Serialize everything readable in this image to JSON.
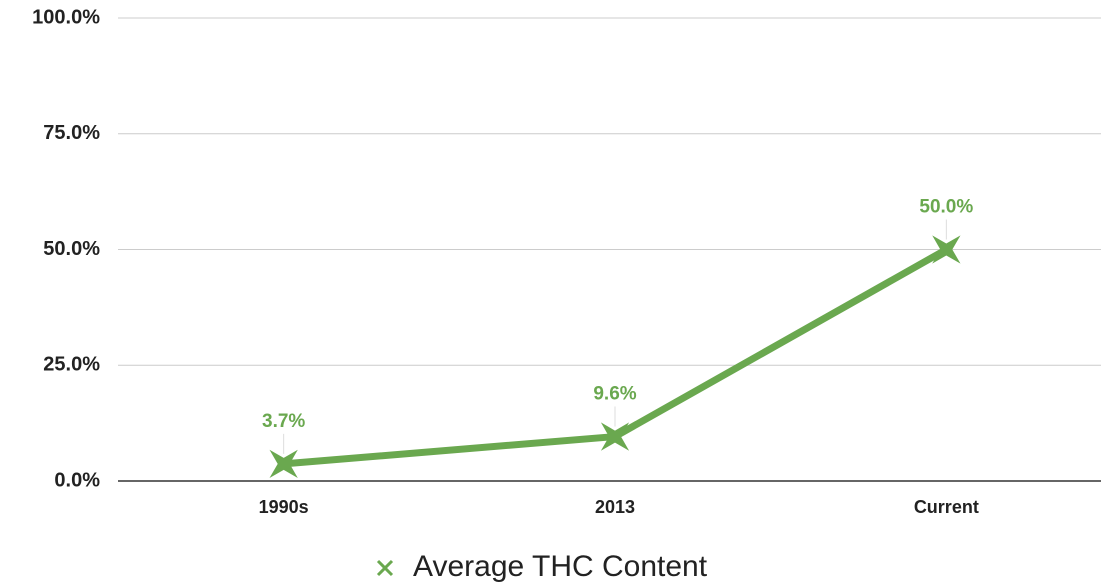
{
  "chart_data": {
    "type": "line",
    "categories": [
      "1990s",
      "2013",
      "Current"
    ],
    "series": [
      {
        "name": "Average THC Content",
        "color": "#6aa84f",
        "values": [
          3.7,
          9.6,
          50.0
        ],
        "value_labels": [
          "3.7%",
          "9.6%",
          "50.0%"
        ]
      }
    ],
    "ylim": [
      0,
      100
    ],
    "yticks": [
      {
        "value": 0,
        "label": "0.0%"
      },
      {
        "value": 25,
        "label": "25.0%"
      },
      {
        "value": 50,
        "label": "50.0%"
      },
      {
        "value": 75,
        "label": "75.0%"
      },
      {
        "value": 100,
        "label": "100.0%"
      }
    ],
    "grid": true,
    "legend": "bottom"
  }
}
